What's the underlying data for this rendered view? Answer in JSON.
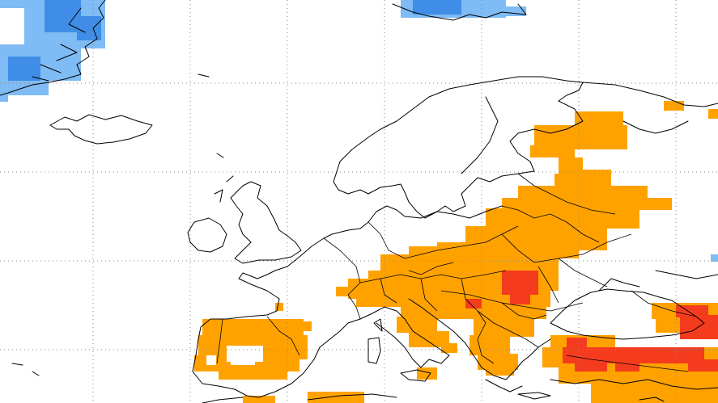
{
  "map": {
    "type": "anomaly-grid-map",
    "region": "Europe",
    "graticule": "dotted",
    "categories": [
      {
        "name": "light-blue",
        "color": "#7fbbf4"
      },
      {
        "name": "blue",
        "color": "#3f8de6"
      },
      {
        "name": "orange",
        "color": "#ffa200"
      },
      {
        "name": "red",
        "color": "#f53b1e"
      }
    ]
  }
}
